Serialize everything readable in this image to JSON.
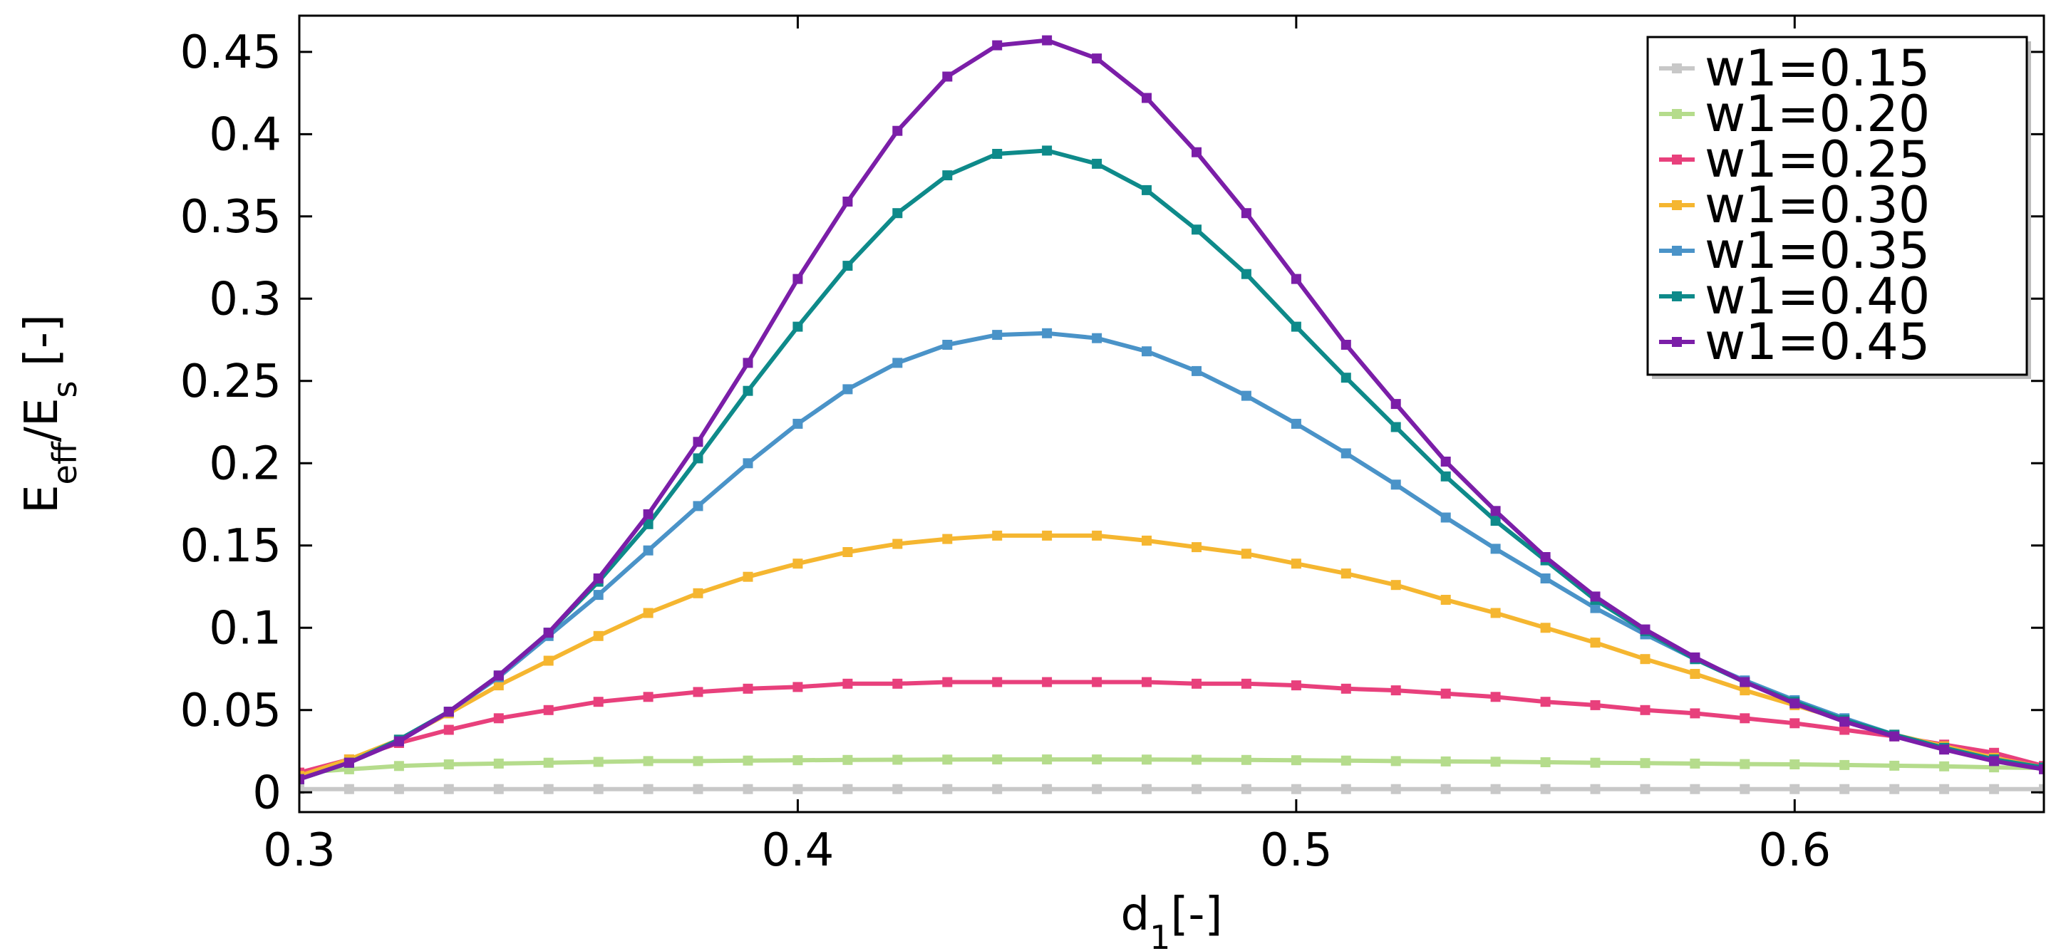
{
  "chart_data": {
    "type": "line",
    "title": "",
    "xlabel": "d1[-]",
    "xlabel_parts": {
      "main": "d",
      "sub": "1",
      "rest": "[-]"
    },
    "ylabel": "Eeff/Es [-]",
    "ylabel_parts": {
      "e1": "E",
      "sub1": "eff",
      "slash": "/E",
      "sub2": "s",
      "rest": " [-]"
    },
    "xlim": [
      0.3,
      0.65
    ],
    "ylim": [
      -0.012,
      0.472
    ],
    "xticks": [
      0.3,
      0.4,
      0.5,
      0.6
    ],
    "xtick_labels": [
      "0.3",
      "0.4",
      "0.5",
      "0.6"
    ],
    "yticks": [
      0,
      0.05,
      0.1,
      0.15,
      0.2,
      0.25,
      0.3,
      0.35,
      0.4,
      0.45
    ],
    "ytick_labels": [
      "0",
      "0.05",
      "0.1",
      "0.15",
      "0.2",
      "0.25",
      "0.3",
      "0.35",
      "0.4",
      "0.45"
    ],
    "grid": false,
    "legend_position": "top-right",
    "x": [
      0.3,
      0.31,
      0.32,
      0.33,
      0.34,
      0.35,
      0.36,
      0.37,
      0.38,
      0.39,
      0.4,
      0.41,
      0.42,
      0.43,
      0.44,
      0.45,
      0.46,
      0.47,
      0.48,
      0.49,
      0.5,
      0.51,
      0.52,
      0.53,
      0.54,
      0.55,
      0.56,
      0.57,
      0.58,
      0.59,
      0.6,
      0.61,
      0.62,
      0.63,
      0.64,
      0.65
    ],
    "series": [
      {
        "name": "w1=0.15",
        "color": "#c8c8c8",
        "values": [
          0.002,
          0.002,
          0.002,
          0.002,
          0.002,
          0.002,
          0.002,
          0.002,
          0.002,
          0.002,
          0.002,
          0.002,
          0.002,
          0.002,
          0.002,
          0.002,
          0.002,
          0.002,
          0.002,
          0.002,
          0.002,
          0.002,
          0.002,
          0.002,
          0.002,
          0.002,
          0.002,
          0.002,
          0.002,
          0.002,
          0.002,
          0.002,
          0.002,
          0.002,
          0.002,
          0.002
        ]
      },
      {
        "name": "w1=0.20",
        "color": "#b5dc8c",
        "values": [
          0.012,
          0.014,
          0.016,
          0.017,
          0.0175,
          0.018,
          0.0185,
          0.019,
          0.019,
          0.0193,
          0.0195,
          0.0197,
          0.0198,
          0.0199,
          0.02,
          0.02,
          0.02,
          0.0199,
          0.0198,
          0.0197,
          0.0195,
          0.0193,
          0.019,
          0.0188,
          0.0186,
          0.0183,
          0.018,
          0.0178,
          0.0175,
          0.0172,
          0.017,
          0.0166,
          0.0162,
          0.0158,
          0.0152,
          0.0148
        ]
      },
      {
        "name": "w1=0.25",
        "color": "#e8407c",
        "values": [
          0.012,
          0.02,
          0.03,
          0.038,
          0.045,
          0.05,
          0.055,
          0.058,
          0.061,
          0.063,
          0.064,
          0.066,
          0.066,
          0.067,
          0.067,
          0.067,
          0.067,
          0.067,
          0.066,
          0.066,
          0.065,
          0.063,
          0.062,
          0.06,
          0.058,
          0.055,
          0.053,
          0.05,
          0.048,
          0.045,
          0.042,
          0.038,
          0.034,
          0.029,
          0.024,
          0.016
        ]
      },
      {
        "name": "w1=0.30",
        "color": "#f5b630",
        "values": [
          0.01,
          0.02,
          0.032,
          0.048,
          0.065,
          0.08,
          0.095,
          0.109,
          0.121,
          0.131,
          0.139,
          0.146,
          0.151,
          0.154,
          0.156,
          0.156,
          0.156,
          0.153,
          0.149,
          0.145,
          0.139,
          0.133,
          0.126,
          0.117,
          0.109,
          0.1,
          0.091,
          0.081,
          0.072,
          0.062,
          0.053,
          0.044,
          0.035,
          0.028,
          0.021,
          0.015
        ]
      },
      {
        "name": "w1=0.35",
        "color": "#4a93c8",
        "values": [
          0.008,
          0.018,
          0.032,
          0.049,
          0.07,
          0.095,
          0.12,
          0.147,
          0.174,
          0.2,
          0.224,
          0.245,
          0.261,
          0.272,
          0.278,
          0.279,
          0.276,
          0.268,
          0.256,
          0.241,
          0.224,
          0.206,
          0.187,
          0.167,
          0.148,
          0.13,
          0.112,
          0.096,
          0.081,
          0.068,
          0.056,
          0.045,
          0.035,
          0.027,
          0.02,
          0.015
        ]
      },
      {
        "name": "w1=0.40",
        "color": "#0e8a8a",
        "values": [
          0.008,
          0.018,
          0.032,
          0.049,
          0.071,
          0.097,
          0.128,
          0.163,
          0.203,
          0.244,
          0.283,
          0.32,
          0.352,
          0.375,
          0.388,
          0.39,
          0.382,
          0.366,
          0.342,
          0.315,
          0.283,
          0.252,
          0.222,
          0.192,
          0.165,
          0.141,
          0.117,
          0.098,
          0.081,
          0.067,
          0.055,
          0.044,
          0.035,
          0.027,
          0.02,
          0.015
        ]
      },
      {
        "name": "w1=0.45",
        "color": "#7b1ea8",
        "values": [
          0.008,
          0.018,
          0.031,
          0.049,
          0.071,
          0.097,
          0.13,
          0.169,
          0.213,
          0.261,
          0.312,
          0.359,
          0.402,
          0.435,
          0.454,
          0.457,
          0.446,
          0.422,
          0.389,
          0.352,
          0.312,
          0.272,
          0.236,
          0.201,
          0.171,
          0.143,
          0.119,
          0.099,
          0.082,
          0.067,
          0.054,
          0.043,
          0.034,
          0.026,
          0.019,
          0.014
        ]
      }
    ]
  }
}
